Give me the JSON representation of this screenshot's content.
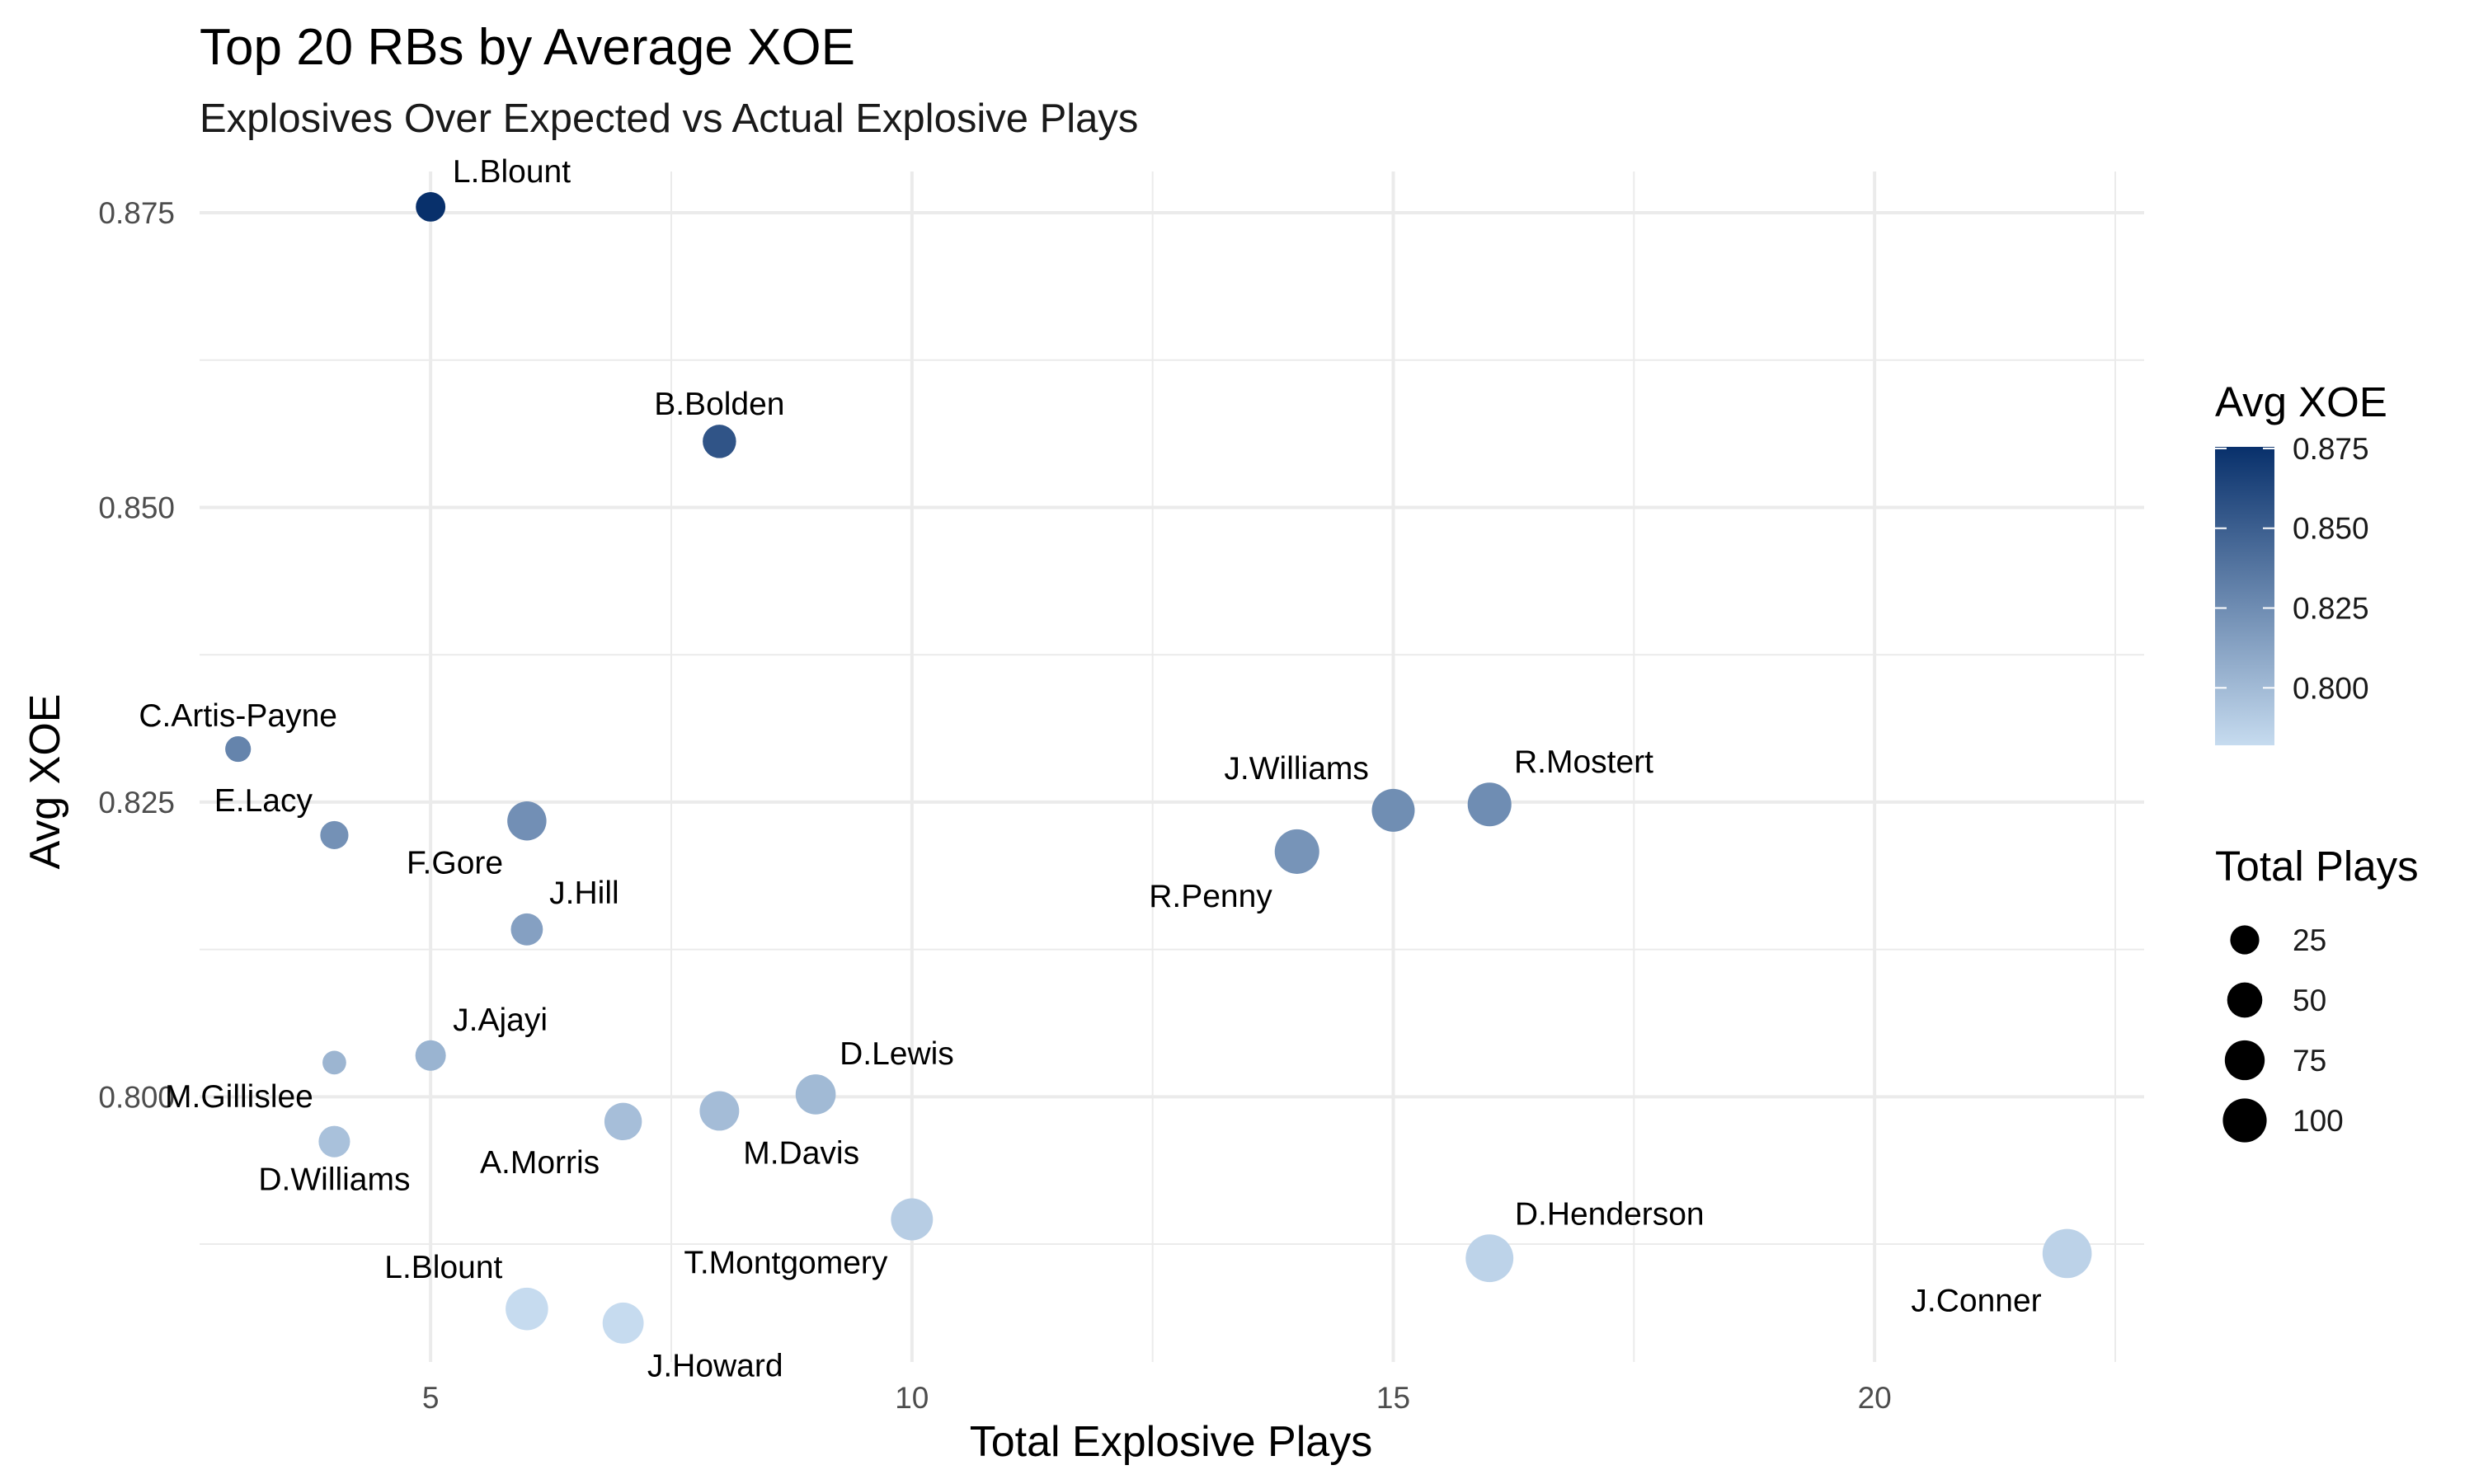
{
  "chart_data": {
    "type": "scatter",
    "title": "Top 20 RBs by Average XOE",
    "subtitle": "Explosives Over Expected vs Actual Explosive Plays",
    "xlabel": "Total Explosive Plays",
    "ylabel": "Avg XOE",
    "xlim": [
      2.6,
      22.8
    ],
    "ylim": [
      0.7775,
      0.8785
    ],
    "x_ticks": [
      5,
      10,
      15,
      20
    ],
    "x_tick_labels": [
      "5",
      "10",
      "15",
      "20"
    ],
    "y_ticks": [
      0.8,
      0.825,
      0.85,
      0.875
    ],
    "y_tick_labels": [
      "0.800",
      "0.825",
      "0.850",
      "0.875"
    ],
    "grid": true,
    "color_scale": {
      "low": "#c6dbef",
      "high": "#08306b",
      "min": 0.782,
      "max": 0.8755
    },
    "legend_color": {
      "title": "Avg XOE",
      "placement": "right",
      "breaks": [
        0.8,
        0.825,
        0.85,
        0.875
      ],
      "labels": [
        "0.800",
        "0.825",
        "0.850",
        "0.875"
      ]
    },
    "legend_size": {
      "title": "Total Plays",
      "placement": "right",
      "breaks": [
        25,
        50,
        75,
        100
      ],
      "labels": [
        "25",
        "50",
        "75",
        "100"
      ]
    },
    "points": [
      {
        "label": "L.Blount",
        "x": 5,
        "y": 0.8755,
        "plays": 22,
        "label_pos": "above-right"
      },
      {
        "label": "B.Bolden",
        "x": 8,
        "y": 0.8556,
        "plays": 35,
        "label_pos": "above"
      },
      {
        "label": "C.Artis-Payne",
        "x": 3,
        "y": 0.8295,
        "plays": 12,
        "label_pos": "above"
      },
      {
        "label": "E.Lacy",
        "x": 4,
        "y": 0.8222,
        "plays": 18,
        "label_pos": "above-left"
      },
      {
        "label": "F.Gore",
        "x": 6,
        "y": 0.8234,
        "plays": 60,
        "label_pos": "below-left"
      },
      {
        "label": "J.Hill",
        "x": 6,
        "y": 0.8142,
        "plays": 30,
        "label_pos": "above-right"
      },
      {
        "label": "J.Williams",
        "x": 15,
        "y": 0.8243,
        "plays": 80,
        "label_pos": "above-left"
      },
      {
        "label": "R.Mostert",
        "x": 16,
        "y": 0.8248,
        "plays": 85,
        "label_pos": "above-right"
      },
      {
        "label": "R.Penny",
        "x": 14,
        "y": 0.8208,
        "plays": 90,
        "label_pos": "below-left"
      },
      {
        "label": "J.Ajayi",
        "x": 5,
        "y": 0.8035,
        "plays": 25,
        "label_pos": "above-right"
      },
      {
        "label": "M.Gillislee",
        "x": 4,
        "y": 0.8029,
        "plays": 8,
        "label_pos": "below-left"
      },
      {
        "label": "D.Williams",
        "x": 4,
        "y": 0.7962,
        "plays": 28,
        "label_pos": "below"
      },
      {
        "label": "A.Morris",
        "x": 7,
        "y": 0.7979,
        "plays": 52,
        "label_pos": "below-left"
      },
      {
        "label": "M.Davis",
        "x": 8,
        "y": 0.7988,
        "plays": 62,
        "label_pos": "below-right"
      },
      {
        "label": "D.Lewis",
        "x": 9,
        "y": 0.8002,
        "plays": 65,
        "label_pos": "above-right"
      },
      {
        "label": "T.Montgomery",
        "x": 10,
        "y": 0.7896,
        "plays": 75,
        "label_pos": "below-left"
      },
      {
        "label": "D.Henderson",
        "x": 16,
        "y": 0.7863,
        "plays": 110,
        "label_pos": "above-right"
      },
      {
        "label": "J.Conner",
        "x": 22,
        "y": 0.7867,
        "plays": 120,
        "label_pos": "below-left"
      },
      {
        "label": "L.Blount",
        "x": 6,
        "y": 0.782,
        "plays": 78,
        "label_pos": "above-left"
      },
      {
        "label": "J.Howard",
        "x": 7,
        "y": 0.7808,
        "plays": 70,
        "label_pos": "below-right"
      }
    ]
  }
}
